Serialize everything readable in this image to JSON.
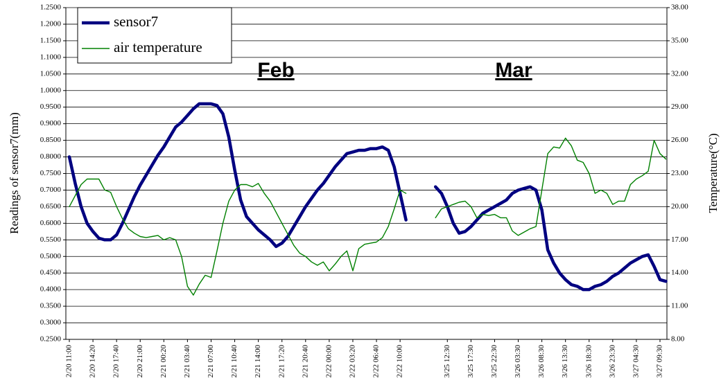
{
  "chart_data": {
    "type": "line",
    "ylabel": "Readings of sensor7(mm)",
    "y2label": "Temperature(°C)",
    "annotations": [
      "Feb",
      "Mar"
    ],
    "legend": "upper left",
    "grid": true,
    "categories": [
      "2/20 11:00",
      null,
      null,
      null,
      "2/20 14:20",
      null,
      null,
      null,
      "2/20 17:40",
      null,
      null,
      null,
      "2/20 21:00",
      null,
      null,
      null,
      "2/21 00:20",
      null,
      null,
      null,
      "2/21 03:40",
      null,
      null,
      null,
      "2/21 07:00",
      null,
      null,
      null,
      "2/21 10:40",
      null,
      null,
      null,
      "2/21 14:00",
      null,
      null,
      null,
      "2/21 17:20",
      null,
      null,
      null,
      "2/21 20:40",
      null,
      null,
      null,
      "2/22 00:00",
      null,
      null,
      null,
      "2/22 03:20",
      null,
      null,
      null,
      "2/22 06:40",
      null,
      null,
      null,
      "2/22 10:00",
      null,
      null,
      null,
      null,
      null,
      null,
      null,
      "3/25 12:30",
      null,
      null,
      null,
      "3/25 17:30",
      null,
      null,
      null,
      "3/25 22:30",
      null,
      null,
      null,
      "3/26 03:30",
      null,
      null,
      null,
      "3/26 08:30",
      null,
      null,
      null,
      "3/26 13:30",
      null,
      null,
      null,
      "3/26 18:30",
      null,
      null,
      null,
      "3/26 23:30",
      null,
      null,
      null,
      "3/27 04:30",
      null,
      null,
      null,
      "3/27 09:30",
      null
    ],
    "series": [
      {
        "name": "sensor7",
        "color": "#000080",
        "axis": "y",
        "values": [
          0.8,
          0.72,
          0.65,
          0.6,
          0.575,
          0.555,
          0.55,
          0.55,
          0.565,
          0.6,
          0.64,
          0.68,
          0.715,
          0.745,
          0.775,
          0.805,
          0.83,
          0.86,
          0.89,
          0.905,
          0.925,
          0.945,
          0.96,
          0.96,
          0.96,
          0.955,
          0.93,
          0.86,
          0.76,
          0.67,
          0.62,
          0.6,
          0.58,
          0.565,
          0.55,
          0.53,
          0.54,
          0.56,
          0.59,
          0.62,
          0.65,
          0.675,
          0.7,
          0.72,
          0.745,
          0.77,
          0.79,
          0.81,
          0.815,
          0.82,
          0.82,
          0.825,
          0.825,
          0.83,
          0.82,
          0.77,
          0.69,
          0.61,
          null,
          null,
          null,
          null,
          0.71,
          0.69,
          0.65,
          0.6,
          0.57,
          0.575,
          0.59,
          0.61,
          0.63,
          0.64,
          0.65,
          0.66,
          0.67,
          0.69,
          0.7,
          0.705,
          0.71,
          0.7,
          0.64,
          0.52,
          0.48,
          0.45,
          0.43,
          0.415,
          0.41,
          0.4,
          0.4,
          0.41,
          0.415,
          0.425,
          0.44,
          0.45,
          0.465,
          0.48,
          0.49,
          0.5,
          0.505,
          0.47,
          0.43,
          0.425
        ]
      },
      {
        "name": "air temperature",
        "color": "#008000",
        "axis": "y2",
        "values": [
          20.0,
          21.0,
          22.0,
          22.5,
          22.5,
          22.5,
          21.5,
          21.3,
          20.0,
          18.9,
          18.0,
          17.6,
          17.3,
          17.2,
          17.3,
          17.4,
          17.0,
          17.2,
          17.0,
          15.5,
          12.8,
          12.0,
          13.0,
          13.8,
          13.6,
          16.0,
          18.5,
          20.5,
          21.5,
          22.0,
          22.0,
          21.8,
          22.1,
          21.2,
          20.5,
          19.5,
          18.5,
          17.5,
          16.5,
          15.8,
          15.5,
          15.0,
          14.7,
          15.0,
          14.2,
          14.8,
          15.5,
          16.0,
          14.2,
          16.2,
          16.6,
          16.7,
          16.8,
          17.2,
          18.2,
          19.8,
          21.5,
          21.2,
          null,
          null,
          null,
          null,
          19.0,
          19.8,
          20.0,
          20.2,
          20.4,
          20.5,
          20.0,
          19.0,
          19.3,
          19.2,
          19.3,
          19.0,
          19.0,
          17.8,
          17.4,
          17.7,
          18.0,
          18.2,
          21.5,
          24.8,
          25.4,
          25.3,
          26.2,
          25.5,
          24.2,
          24.0,
          23.0,
          21.2,
          21.5,
          21.2,
          20.2,
          20.5,
          20.5,
          22.0,
          22.5,
          22.8,
          23.2,
          26.0,
          24.8,
          24.3
        ]
      }
    ],
    "ylim": [
      0.25,
      1.25
    ],
    "yticks": [
      {
        "value": 0.25,
        "label": "0.2500"
      },
      {
        "value": 0.3,
        "label": "0.3000"
      },
      {
        "value": 0.35,
        "label": "0.3500"
      },
      {
        "value": 0.4,
        "label": "0.4000"
      },
      {
        "value": 0.45,
        "label": "0.4500"
      },
      {
        "value": 0.5,
        "label": "0.5000"
      },
      {
        "value": 0.55,
        "label": "0.5500"
      },
      {
        "value": 0.6,
        "label": "0.6000"
      },
      {
        "value": 0.65,
        "label": "0.6500"
      },
      {
        "value": 0.7,
        "label": "0.7000"
      },
      {
        "value": 0.75,
        "label": "0.7500"
      },
      {
        "value": 0.8,
        "label": "0.8000"
      },
      {
        "value": 0.85,
        "label": "0.8500"
      },
      {
        "value": 0.9,
        "label": "0.9000"
      },
      {
        "value": 0.95,
        "label": "0.9500"
      },
      {
        "value": 1.0,
        "label": "1.0000"
      },
      {
        "value": 1.05,
        "label": "1.0500"
      },
      {
        "value": 1.1,
        "label": "1.1000"
      },
      {
        "value": 1.15,
        "label": "1.1500"
      },
      {
        "value": 1.2,
        "label": "1.2000"
      },
      {
        "value": 1.25,
        "label": "1.2500"
      }
    ],
    "y2lim": [
      8,
      38
    ],
    "y2ticks": [
      {
        "value": 8,
        "label": "8.00"
      },
      {
        "value": 11,
        "label": "11.00"
      },
      {
        "value": 14,
        "label": "14.00"
      },
      {
        "value": 17,
        "label": "17.00"
      },
      {
        "value": 20,
        "label": "20.00"
      },
      {
        "value": 23,
        "label": "23.00"
      },
      {
        "value": 26,
        "label": "26.00"
      },
      {
        "value": 29,
        "label": "29.00"
      },
      {
        "value": 32,
        "label": "32.00"
      },
      {
        "value": 35,
        "label": "35.00"
      },
      {
        "value": 38,
        "label": "38.00"
      }
    ]
  }
}
